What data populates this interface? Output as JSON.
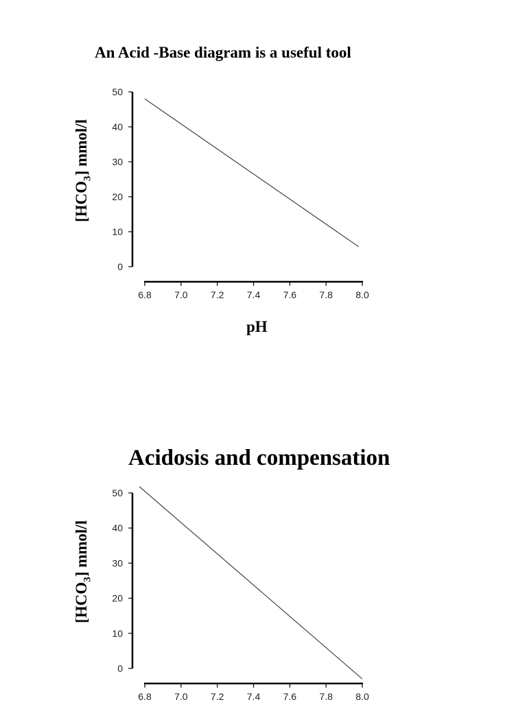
{
  "chart_data": [
    {
      "type": "line",
      "title": "An Acid -Base diagram is a useful tool",
      "xlabel": "pH",
      "ylabel": "[HCO3] mmol/l",
      "x_ticks": [
        "6.8",
        "7.0",
        "7.2",
        "7.4",
        "7.6",
        "7.8",
        "8.0"
      ],
      "y_ticks": [
        "0",
        "10",
        "20",
        "30",
        "40",
        "50"
      ],
      "xlim": [
        6.8,
        8.0
      ],
      "ylim": [
        0,
        50
      ],
      "grid": false,
      "series": [
        {
          "name": "line",
          "x": [
            6.8,
            7.98
          ],
          "y": [
            48,
            5.7
          ]
        }
      ]
    },
    {
      "type": "line",
      "title": "Acidosis and compensation",
      "xlabel": "",
      "ylabel": "[HCO3] mmol/l",
      "x_ticks": [
        "6.8",
        "7.0",
        "7.2",
        "7.4",
        "7.6",
        "7.8",
        "8.0"
      ],
      "y_ticks": [
        "0",
        "10",
        "20",
        "30",
        "40",
        "50"
      ],
      "xlim": [
        6.8,
        8.0
      ],
      "ylim": [
        0,
        50
      ],
      "grid": false,
      "series": [
        {
          "name": "line",
          "x": [
            6.77,
            8.0
          ],
          "y": [
            51.8,
            -3
          ]
        }
      ]
    }
  ],
  "labels": {
    "title1": "An Acid -Base diagram is a useful tool",
    "title2": "Acidosis and compensation",
    "xlabel1": "pH",
    "ylabel_prefix": "[HCO",
    "ylabel_sub": "3",
    "ylabel_suffix": "] mmol/l"
  }
}
